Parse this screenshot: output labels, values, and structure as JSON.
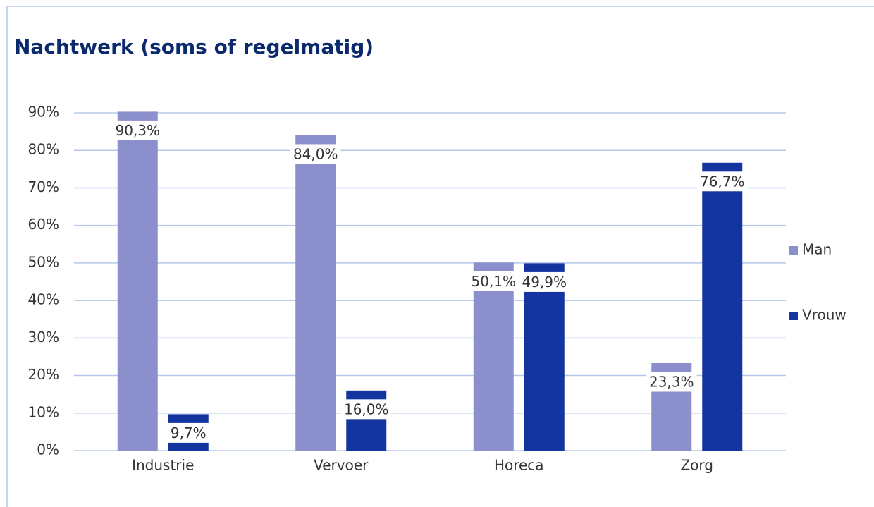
{
  "chart_data": {
    "type": "bar",
    "title": "Nachtwerk (soms of regelmatig)",
    "categories": [
      "Industrie",
      "Vervoer",
      "Horeca",
      "Zorg"
    ],
    "series": [
      {
        "name": "Man",
        "color": "#8b8fcb",
        "values": [
          90.3,
          84.0,
          50.1,
          23.3
        ],
        "value_labels": [
          "90,3%",
          "84,0%",
          "50,1%",
          "23,3%"
        ]
      },
      {
        "name": "Vrouw",
        "color": "#1434a0",
        "values": [
          9.7,
          16.0,
          49.9,
          76.7
        ],
        "value_labels": [
          "9,7%",
          "16,0%",
          "49,9%",
          "76,7%"
        ]
      }
    ],
    "ylim": [
      0,
      90
    ],
    "yticks": [
      {
        "value": 0,
        "label": "0%"
      },
      {
        "value": 10,
        "label": "10%"
      },
      {
        "value": 20,
        "label": "20%"
      },
      {
        "value": 30,
        "label": "30%"
      },
      {
        "value": 40,
        "label": "40%"
      },
      {
        "value": 50,
        "label": "50%"
      },
      {
        "value": 60,
        "label": "60%"
      },
      {
        "value": 70,
        "label": "70%"
      },
      {
        "value": 80,
        "label": "80%"
      },
      {
        "value": 90,
        "label": "90%"
      }
    ],
    "grid": true,
    "legend": "right"
  }
}
